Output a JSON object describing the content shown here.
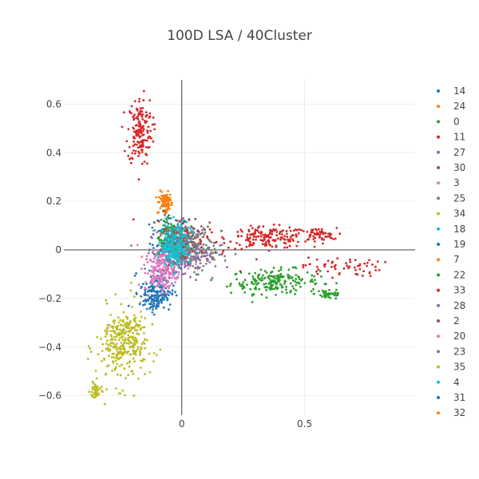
{
  "chart_data": {
    "type": "scatter",
    "title": "100D LSA / 40Cluster",
    "xlabel": "",
    "ylabel": "",
    "xlim": [
      -0.48,
      0.95
    ],
    "ylim": [
      -0.68,
      0.7
    ],
    "x_ticks": [
      0,
      0.5
    ],
    "x_tick_labels": [
      "0",
      "0.5"
    ],
    "y_ticks": [
      0.6,
      0.4,
      0.2,
      0,
      -0.2,
      -0.4,
      -0.6
    ],
    "y_tick_labels": [
      "0.6",
      "0.4",
      "0.2",
      "0",
      "−0.2",
      "−0.4",
      "−0.6"
    ],
    "grid": true,
    "zero_lines": true,
    "legend_position": "right",
    "series": [
      {
        "name": "14",
        "color": "#1f77b4",
        "clusters": [
          {
            "x": -0.05,
            "y": 0.03,
            "sx": 0.04,
            "sy": 0.06,
            "n": 90
          }
        ]
      },
      {
        "name": "24",
        "color": "#ff7f0e",
        "clusters": [
          {
            "x": -0.07,
            "y": 0.19,
            "sx": 0.015,
            "sy": 0.025,
            "n": 50
          }
        ]
      },
      {
        "name": "0",
        "color": "#2ca02c",
        "clusters": [
          {
            "x": 0.38,
            "y": -0.13,
            "sx": 0.09,
            "sy": 0.025,
            "n": 200
          },
          {
            "x": 0.6,
            "y": -0.18,
            "sx": 0.03,
            "sy": 0.012,
            "n": 40
          }
        ]
      },
      {
        "name": "11",
        "color": "#d62728",
        "clusters": [
          {
            "x": 0.35,
            "y": 0.05,
            "sx": 0.08,
            "sy": 0.022,
            "n": 160
          },
          {
            "x": 0.55,
            "y": 0.06,
            "sx": 0.04,
            "sy": 0.015,
            "n": 60
          },
          {
            "x": -0.17,
            "y": 0.49,
            "sx": 0.025,
            "sy": 0.07,
            "n": 170
          },
          {
            "x": 0.65,
            "y": -0.07,
            "sx": 0.08,
            "sy": 0.02,
            "n": 60
          }
        ]
      },
      {
        "name": "27",
        "color": "#9467bd",
        "clusters": [
          {
            "x": 0.0,
            "y": -0.02,
            "sx": 0.06,
            "sy": 0.05,
            "n": 80
          }
        ]
      },
      {
        "name": "30",
        "color": "#8c564b",
        "clusters": [
          {
            "x": 0.03,
            "y": 0.03,
            "sx": 0.05,
            "sy": 0.04,
            "n": 70
          }
        ]
      },
      {
        "name": "3",
        "color": "#e377c2",
        "clusters": [
          {
            "x": -0.03,
            "y": 0.0,
            "sx": 0.05,
            "sy": 0.05,
            "n": 60
          }
        ]
      },
      {
        "name": "25",
        "color": "#7f7f7f",
        "clusters": [
          {
            "x": 0.02,
            "y": 0.01,
            "sx": 0.06,
            "sy": 0.05,
            "n": 90
          }
        ]
      },
      {
        "name": "34",
        "color": "#bcbd22",
        "clusters": [
          {
            "x": -0.25,
            "y": -0.4,
            "sx": 0.05,
            "sy": 0.08,
            "n": 200
          },
          {
            "x": -0.35,
            "y": -0.58,
            "sx": 0.012,
            "sy": 0.02,
            "n": 40
          }
        ]
      },
      {
        "name": "18",
        "color": "#17becf",
        "clusters": [
          {
            "x": -0.02,
            "y": 0.03,
            "sx": 0.03,
            "sy": 0.04,
            "n": 180
          }
        ]
      },
      {
        "name": "19",
        "color": "#1f77b4",
        "clusters": [
          {
            "x": -0.1,
            "y": -0.17,
            "sx": 0.035,
            "sy": 0.04,
            "n": 120
          }
        ]
      },
      {
        "name": "7",
        "color": "#ff7f0e",
        "clusters": [
          {
            "x": -0.06,
            "y": 0.2,
            "sx": 0.01,
            "sy": 0.02,
            "n": 30
          }
        ]
      },
      {
        "name": "22",
        "color": "#2ca02c",
        "clusters": [
          {
            "x": -0.06,
            "y": 0.06,
            "sx": 0.03,
            "sy": 0.06,
            "n": 60
          }
        ]
      },
      {
        "name": "33",
        "color": "#d62728",
        "clusters": [
          {
            "x": 0.04,
            "y": 0.02,
            "sx": 0.07,
            "sy": 0.05,
            "n": 50
          }
        ]
      },
      {
        "name": "28",
        "color": "#9467bd",
        "clusters": [
          {
            "x": 0.02,
            "y": -0.03,
            "sx": 0.06,
            "sy": 0.05,
            "n": 70
          }
        ]
      },
      {
        "name": "2",
        "color": "#8c564b",
        "clusters": [
          {
            "x": 0.0,
            "y": 0.05,
            "sx": 0.05,
            "sy": 0.05,
            "n": 60
          }
        ]
      },
      {
        "name": "20",
        "color": "#e377c2",
        "clusters": [
          {
            "x": -0.09,
            "y": -0.09,
            "sx": 0.03,
            "sy": 0.04,
            "n": 160
          }
        ]
      },
      {
        "name": "23",
        "color": "#7f7f7f",
        "clusters": [
          {
            "x": 0.05,
            "y": 0.0,
            "sx": 0.06,
            "sy": 0.04,
            "n": 80
          }
        ]
      },
      {
        "name": "35",
        "color": "#bcbd22",
        "clusters": [
          {
            "x": -0.22,
            "y": -0.35,
            "sx": 0.04,
            "sy": 0.06,
            "n": 120
          }
        ]
      },
      {
        "name": "4",
        "color": "#17becf",
        "clusters": [
          {
            "x": -0.03,
            "y": 0.01,
            "sx": 0.025,
            "sy": 0.035,
            "n": 160
          }
        ]
      },
      {
        "name": "31",
        "color": "#1f77b4",
        "clusters": [
          {
            "x": -0.11,
            "y": -0.2,
            "sx": 0.02,
            "sy": 0.025,
            "n": 50
          }
        ]
      },
      {
        "name": "32",
        "color": "#ff7f0e",
        "clusters": [
          {
            "x": -0.07,
            "y": 0.21,
            "sx": 0.008,
            "sy": 0.01,
            "n": 15
          }
        ]
      }
    ]
  }
}
